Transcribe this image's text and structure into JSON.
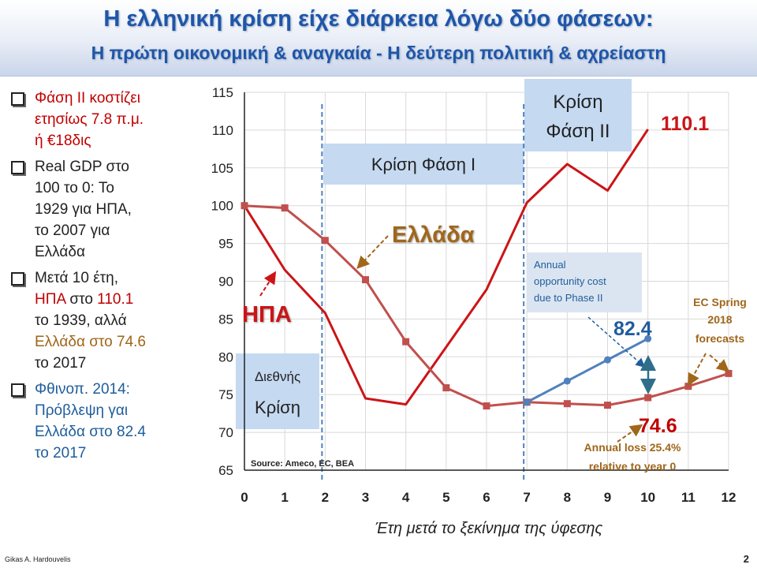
{
  "title": {
    "main": "Η ελληνική κρίση είχε διάρκεια λόγω δύο φάσεων:",
    "sub": "Η πρώτη οικονομική & αναγκαία -  Η δεύτερη πολιτική & αχρείαστη"
  },
  "bullets": [
    {
      "lines": [
        [
          "Φάση ΙΙ κοστίζει"
        ],
        [
          "ετησίως 7.8 π.μ."
        ],
        [
          "ή   €18δις"
        ]
      ]
    },
    {
      "lines": [
        [
          "Real GDP στο"
        ],
        [
          "100  το 0:  Το"
        ],
        [
          "1929 για  ΗΠΑ,"
        ],
        [
          "το 2007 για"
        ],
        [
          "Ελλάδα"
        ]
      ]
    },
    {
      "lines": [
        [
          "Μετά 10 έτη,"
        ],
        [
          "ΗΠΑ",
          " στο ",
          "110.1"
        ],
        [
          "το 1939, αλλά"
        ],
        [
          "Ελλάδα στο 74.6"
        ],
        [
          "το 2017"
        ]
      ]
    },
    {
      "lines": [
        [
          "Φθινοπ. 2014:"
        ],
        [
          "Πρόβλεψη γαι"
        ],
        [
          "Ελλάδα στο 82.4"
        ],
        [
          "το 2017"
        ]
      ]
    }
  ],
  "colors": {
    "usa": "#cc1417",
    "greece": "#c0504d",
    "forecast": "#4f81bd",
    "phase_box": "#c5d9f1",
    "title": "#1e56a8",
    "annotation_brown": "#a0661a",
    "blue_text": "#1f5d9c"
  },
  "chart_data": {
    "type": "line",
    "x": [
      0,
      1,
      2,
      3,
      4,
      5,
      6,
      7,
      8,
      9,
      10,
      11,
      12
    ],
    "xlabel": "Έτη μετά το ξεκίνημα της ύφεσης",
    "ylim": [
      65,
      115
    ],
    "yticks": [
      65,
      70,
      75,
      80,
      85,
      90,
      95,
      100,
      105,
      110,
      115
    ],
    "series": [
      {
        "name": "ΗΠΑ",
        "x": [
          0,
          1,
          2,
          3,
          4,
          5,
          6,
          7,
          8,
          9,
          10
        ],
        "values": [
          100,
          91.5,
          85.8,
          74.5,
          73.7,
          81.3,
          88.9,
          100.4,
          105.5,
          102.0,
          110.1
        ]
      },
      {
        "name": "Ελλάδα",
        "x": [
          0,
          1,
          2,
          3,
          4,
          5,
          6,
          7,
          8,
          9,
          10,
          11,
          12
        ],
        "values": [
          100,
          99.7,
          95.4,
          90.2,
          82.0,
          75.9,
          73.5,
          74.0,
          73.8,
          73.6,
          74.6,
          76.1,
          77.8
        ]
      },
      {
        "x": [
          7,
          8,
          9,
          10
        ],
        "values": [
          74.0,
          76.8,
          79.6,
          82.4
        ]
      }
    ],
    "phase_lines_x": [
      2,
      7
    ],
    "boxes": {
      "phase1": "Κρίση Φάση Ι",
      "phase2_line1": "Κρίση",
      "phase2_line2": "Φάση ΙΙ",
      "global_line1": "Διεθνής",
      "global_line2": "Κρίση",
      "opportunity_line1": "Annual",
      "opportunity_line2": "opportunity cost",
      "opportunity_line3": "due to Phase II"
    },
    "labels": {
      "greece": "Ελλάδα",
      "usa": "ΗΠΑ",
      "usa_end": "110.1",
      "forecast_end": "82.4",
      "greece_end": "74.6",
      "source": "Source: Ameco, EC, BEA",
      "ec_line1": "EC Spring",
      "ec_line2": "2018",
      "ec_line3": "forecasts",
      "loss_line1": "Annual loss 25.4%",
      "loss_line2": "relative to year 0"
    }
  },
  "footer": {
    "author": "Gikas A. Hardouvelis",
    "page": "2"
  }
}
